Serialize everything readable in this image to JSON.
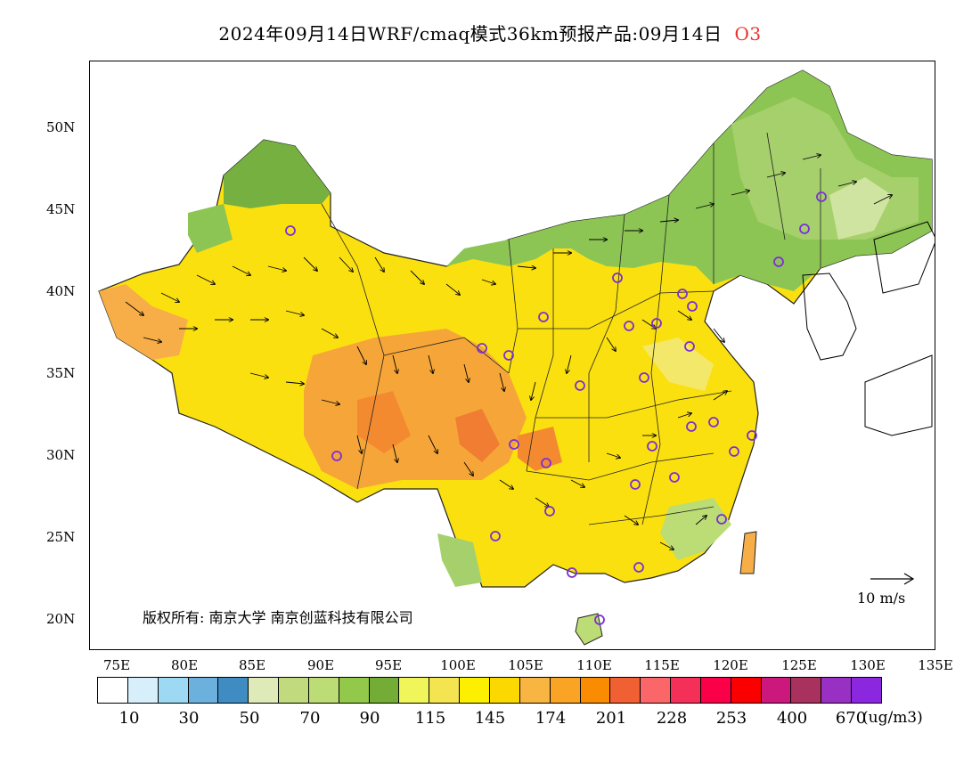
{
  "title": {
    "text": "2024年09月14日WRF/cmaq模式36km预报产品:09月14日",
    "variable": "O3"
  },
  "map": {
    "lat_labels": [
      "50N",
      "45N",
      "40N",
      "35N",
      "30N",
      "25N",
      "20N"
    ],
    "lon_labels": [
      "75E",
      "80E",
      "85E",
      "90E",
      "95E",
      "100E",
      "105E",
      "110E",
      "115E",
      "120E",
      "125E",
      "130E",
      "135E"
    ],
    "copyright": "版权所有: 南京大学 南京创蓝科技有限公司",
    "wind_scale_label": "10  m/s"
  },
  "legend": {
    "colors": [
      "#ffffff",
      "#d6effb",
      "#9dd9f3",
      "#6cb1dd",
      "#3f8cc2",
      "#deebb8",
      "#c1da7d",
      "#bcdc75",
      "#93c94a",
      "#74ad35",
      "#f0f55a",
      "#f4e450",
      "#fcef00",
      "#fbd900",
      "#f9b542",
      "#f9a425",
      "#f98c00",
      "#f06033",
      "#fb6668",
      "#f53058",
      "#f90048",
      "#fa0000",
      "#cc177c",
      "#a8315e",
      "#9830c4",
      "#8c27e0"
    ],
    "labels": [
      "10",
      "30",
      "50",
      "70",
      "90",
      "115",
      "145",
      "174",
      "201",
      "228",
      "253",
      "400",
      "670"
    ],
    "unit": "(ug/m3)"
  }
}
